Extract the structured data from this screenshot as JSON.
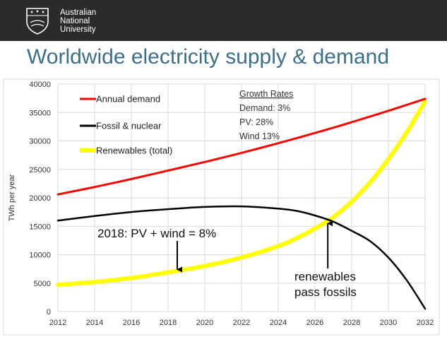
{
  "header": {
    "logo_lines": [
      "Australian",
      "National",
      "University"
    ],
    "logo_icon": "crest-icon"
  },
  "title": "Worldwide electricity supply & demand",
  "colors": {
    "header_bg": "#2b2b2b",
    "title": "#3f6e86",
    "demand": "#ff0000",
    "fossil": "#000000",
    "renewables": "#ffff00"
  },
  "chart_data": {
    "type": "line",
    "title": "",
    "xlabel": "",
    "ylabel": "TWh per year",
    "xlim": [
      2012,
      2032
    ],
    "ylim": [
      0,
      40000
    ],
    "grid": true,
    "x_ticks": [
      2012,
      2014,
      2016,
      2018,
      2020,
      2022,
      2024,
      2026,
      2028,
      2030,
      2032
    ],
    "y_ticks": [
      0,
      5000,
      10000,
      15000,
      20000,
      25000,
      30000,
      35000,
      40000
    ],
    "legend_position": "top-left",
    "series": [
      {
        "name": "Annual demand",
        "color": "#ff0000",
        "x": [
          2012,
          2014,
          2016,
          2018,
          2020,
          2022,
          2024,
          2026,
          2028,
          2030,
          2032
        ],
        "y": [
          20600,
          21900,
          23300,
          24800,
          26300,
          27900,
          29600,
          31400,
          33300,
          35300,
          37400
        ]
      },
      {
        "name": "Fossil & nuclear",
        "color": "#000000",
        "x": [
          2012,
          2014,
          2016,
          2018,
          2020,
          2022,
          2024,
          2025,
          2026,
          2027,
          2028,
          2029,
          2030,
          2031,
          2032
        ],
        "y": [
          16000,
          16800,
          17500,
          18000,
          18400,
          18500,
          18100,
          17700,
          16900,
          15800,
          14200,
          12400,
          9500,
          5500,
          500
        ]
      },
      {
        "name": "Renewables (total)",
        "color": "#ffff00",
        "x": [
          2012,
          2014,
          2016,
          2018,
          2020,
          2022,
          2024,
          2025,
          2026,
          2027,
          2028,
          2029,
          2030,
          2031,
          2032
        ],
        "y": [
          4700,
          5200,
          5900,
          6900,
          8000,
          9500,
          11500,
          12900,
          14600,
          16600,
          19300,
          22700,
          26800,
          31500,
          37000
        ]
      }
    ],
    "growth_rates": {
      "heading": "Growth Rates",
      "lines": [
        "Demand: 3%",
        "PV: 28%",
        "Wind 13%"
      ]
    },
    "annotations": [
      {
        "text": "2018: PV + wind = 8%",
        "arrow_x": 2018.5,
        "arrow_y": 6900
      },
      {
        "lines": [
          "renewables",
          "pass fossils"
        ],
        "arrow_x": 2026.7,
        "arrow_y": 16000
      }
    ]
  }
}
